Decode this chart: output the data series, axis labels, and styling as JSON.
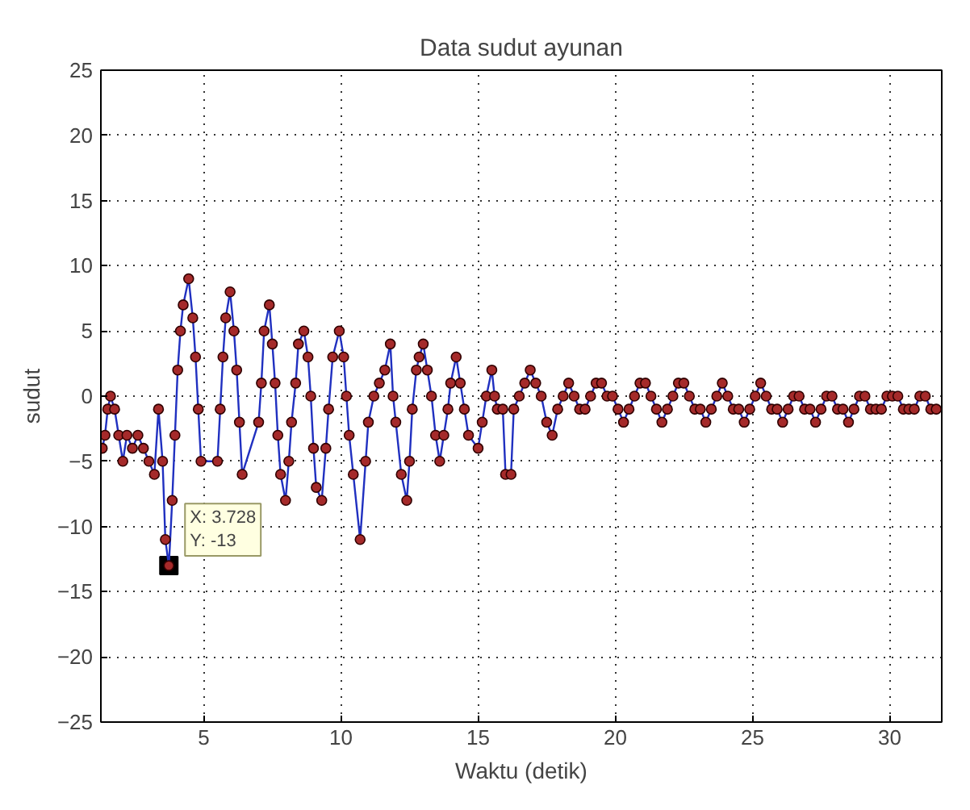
{
  "chart_data": {
    "type": "line",
    "title": "Data sudut ayunan",
    "xlabel": "Waktu (detik)",
    "ylabel": "sudut",
    "xlim": [
      1.25,
      31.9
    ],
    "ylim": [
      -25,
      25
    ],
    "xticks": [
      5,
      10,
      15,
      20,
      25,
      30
    ],
    "yticks": [
      -25,
      -20,
      -15,
      -10,
      -5,
      0,
      5,
      10,
      15,
      20,
      25
    ],
    "grid": true,
    "marker": "circle",
    "annotations": [
      {
        "text": "X: 3.728\nY: -13",
        "x": 3.728,
        "y": -13
      }
    ],
    "series": [
      {
        "color": "#a52a2a",
        "x": [
          1.3,
          1.4,
          1.5,
          1.6,
          1.75,
          1.9,
          2.05,
          2.2,
          2.4,
          2.6,
          2.8,
          3.0,
          3.2,
          3.35,
          3.5,
          3.6,
          3.728,
          3.85,
          3.95,
          4.05,
          4.15,
          4.25,
          4.45,
          4.6,
          4.7,
          4.8,
          4.9,
          5.5,
          5.6,
          5.7,
          5.8,
          5.96,
          6.1,
          6.2,
          6.3,
          6.4,
          7.0,
          7.1,
          7.2,
          7.39,
          7.5,
          7.6,
          7.7,
          7.8,
          7.98,
          8.1,
          8.2,
          8.35,
          8.45,
          8.65,
          8.8,
          8.9,
          9.0,
          9.1,
          9.3,
          9.45,
          9.55,
          9.7,
          9.94,
          10.1,
          10.2,
          10.3,
          10.45,
          10.7,
          10.9,
          11.0,
          11.2,
          11.4,
          11.6,
          11.8,
          11.9,
          12.0,
          12.2,
          12.4,
          12.5,
          12.6,
          12.75,
          12.85,
          13.0,
          13.15,
          13.3,
          13.45,
          13.6,
          13.75,
          13.9,
          14.0,
          14.2,
          14.35,
          14.5,
          14.65,
          15.0,
          15.15,
          15.3,
          15.5,
          15.6,
          15.7,
          15.9,
          16.0,
          16.2,
          16.3,
          16.5,
          16.7,
          16.9,
          17.1,
          17.3,
          17.5,
          17.7,
          17.9,
          18.1,
          18.3,
          18.5,
          18.7,
          18.9,
          19.1,
          19.3,
          19.5,
          19.7,
          19.9,
          20.1,
          20.3,
          20.5,
          20.7,
          20.9,
          21.1,
          21.3,
          21.5,
          21.7,
          21.9,
          22.1,
          22.3,
          22.5,
          22.7,
          22.9,
          23.1,
          23.3,
          23.5,
          23.7,
          23.9,
          24.1,
          24.3,
          24.5,
          24.7,
          24.9,
          25.1,
          25.3,
          25.5,
          25.7,
          25.9,
          26.1,
          26.3,
          26.5,
          26.7,
          26.9,
          27.1,
          27.3,
          27.5,
          27.7,
          27.9,
          28.1,
          28.3,
          28.5,
          28.7,
          28.9,
          29.1,
          29.3,
          29.5,
          29.7,
          29.9,
          30.1,
          30.3,
          30.5,
          30.7,
          30.9,
          31.1,
          31.3,
          31.5,
          31.7
        ],
        "values": [
          -4,
          -3,
          -1,
          0,
          -1,
          -3,
          -5,
          -3,
          -4,
          -3,
          -4,
          -5,
          -6,
          -1,
          -5,
          -11,
          -13,
          -8,
          -3,
          2,
          5,
          7,
          9,
          6,
          3,
          -1,
          -5,
          -5,
          -1,
          3,
          6,
          8,
          5,
          2,
          -2,
          -6,
          -2,
          1,
          5,
          7,
          4,
          1,
          -3,
          -6,
          -8,
          -5,
          -2,
          1,
          4,
          5,
          3,
          0,
          -4,
          -7,
          -8,
          -4,
          -1,
          3,
          5,
          3,
          0,
          -3,
          -6,
          -11,
          -5,
          -2,
          0,
          1,
          2,
          4,
          0,
          -2,
          -6,
          -8,
          -5,
          -1,
          2,
          3,
          4,
          2,
          0,
          -3,
          -5,
          -3,
          -1,
          1,
          3,
          1,
          -1,
          -3,
          -4,
          -2,
          0,
          2,
          0,
          -1,
          -1,
          -6,
          -6,
          -1,
          0,
          1,
          2,
          1,
          0,
          -2,
          -3,
          -1,
          0,
          1,
          0,
          -1,
          -1,
          0,
          1,
          1,
          0,
          0,
          -1,
          -2,
          -1,
          0,
          1,
          1,
          0,
          -1,
          -2,
          -1,
          0,
          1,
          1,
          0,
          -1,
          -1,
          -2,
          -1,
          0,
          1,
          0,
          -1,
          -1,
          -2,
          -1,
          0,
          1,
          0,
          -1,
          -1,
          -2,
          -1,
          0,
          0,
          -1,
          -1,
          -2,
          -1,
          0,
          0,
          -1,
          -1,
          -2,
          -1,
          0,
          0,
          -1,
          -1,
          -1,
          0,
          0,
          0,
          -1,
          -1,
          -1,
          0,
          0,
          -1,
          -1
        ]
      }
    ]
  }
}
